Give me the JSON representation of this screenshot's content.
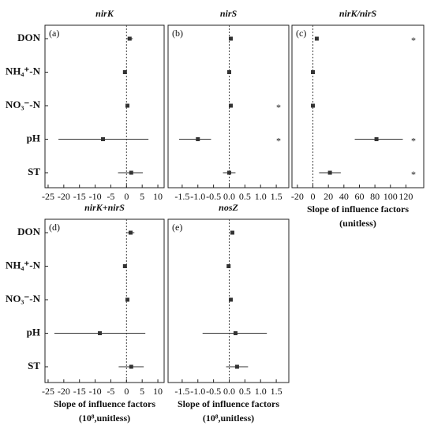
{
  "chart_data": [
    {
      "type": "forest",
      "panel": "(a)",
      "title": "nirK",
      "categories": [
        "DON",
        "NH₄⁺-N",
        "NO₃⁻-N",
        "pH",
        "ST"
      ],
      "values": [
        1,
        -0.5,
        0.3,
        -7.5,
        1.5
      ],
      "lower": [
        0.1,
        -0.7,
        0.0,
        -21.7,
        -2.7
      ],
      "upper": [
        2,
        -0.3,
        0.6,
        7,
        5.2
      ],
      "xlim": [
        -26,
        12
      ],
      "xticks": [
        -25,
        -20,
        -15,
        -10,
        -5,
        0,
        5,
        10
      ],
      "color": "#333333"
    },
    {
      "type": "forest",
      "panel": "(b)",
      "title": "nirS",
      "values": [
        0.05,
        0.0,
        0.05,
        -1.0,
        0.0
      ],
      "lower": [
        0.02,
        -0.03,
        0.02,
        -1.6,
        -0.2
      ],
      "upper": [
        0.08,
        0.03,
        0.08,
        -0.58,
        0.2
      ],
      "significance": [
        null,
        null,
        "*",
        "*",
        null
      ],
      "xlim": [
        -1.95,
        1.9
      ],
      "xticks": [
        {
          "value": -1.5,
          "label": "-1.5"
        },
        {
          "value": -1,
          "label": "-1.0"
        },
        {
          "value": -0.5,
          "label": "-0.5"
        },
        {
          "value": 0,
          "label": "0.0"
        },
        {
          "value": 0.5,
          "label": "0.5"
        },
        {
          "value": 1,
          "label": "1.0"
        },
        {
          "value": 1.5,
          "label": "1.5"
        }
      ],
      "color": "#333333"
    },
    {
      "type": "forest",
      "panel": "(c)",
      "title": "nirK/nirS",
      "values": [
        5,
        0,
        0,
        82,
        22
      ],
      "lower": [
        3,
        -1.5,
        -1.5,
        54,
        8
      ],
      "upper": [
        7,
        1.5,
        1.5,
        116,
        36
      ],
      "significance": [
        "*",
        null,
        null,
        "*",
        "*"
      ],
      "xlim": [
        -27,
        143
      ],
      "xticks": [
        -20,
        0,
        20,
        40,
        60,
        80,
        100,
        120
      ],
      "x_label": "Slope of influence factors",
      "x_label_units": "(unitless)",
      "color": "#333333"
    },
    {
      "type": "forest",
      "panel": "(d)",
      "title": "nirK+nirS",
      "categories": [
        "DON",
        "NH₄⁺-N",
        "NO₃⁻-N",
        "pH",
        "ST"
      ],
      "values": [
        1.3,
        -0.5,
        0.3,
        -8.5,
        1.5
      ],
      "lower": [
        0.2,
        -0.7,
        0.0,
        -23,
        -2.5
      ],
      "upper": [
        2.5,
        -0.3,
        0.6,
        6,
        5.5
      ],
      "xlim": [
        -26,
        12
      ],
      "xticks": [
        -25,
        -20,
        -15,
        -10,
        -5,
        0,
        5,
        10
      ],
      "x_label": "Slope of influence factors",
      "x_label_units": "(10⁸,unitless)",
      "color": "#333333"
    },
    {
      "type": "forest",
      "panel": "(e)",
      "title": "nosZ",
      "values": [
        0.1,
        -0.02,
        0.05,
        0.2,
        0.25
      ],
      "lower": [
        0.05,
        -0.05,
        0.02,
        -0.85,
        -0.1
      ],
      "upper": [
        0.15,
        0.01,
        0.08,
        1.2,
        0.6
      ],
      "xlim": [
        -1.95,
        1.9
      ],
      "xticks": [
        {
          "value": -1.5,
          "label": "-1.5"
        },
        {
          "value": -1,
          "label": "-1.0"
        },
        {
          "value": -0.5,
          "label": "-0.5"
        },
        {
          "value": 0,
          "label": "0.0"
        },
        {
          "value": 0.5,
          "label": "0.5"
        },
        {
          "value": 1,
          "label": "1.0"
        },
        {
          "value": 1.5,
          "label": "1.5"
        }
      ],
      "x_label": "Slope of influence factors",
      "x_label_units": "(10⁸,unitless)",
      "color": "#333333"
    }
  ]
}
